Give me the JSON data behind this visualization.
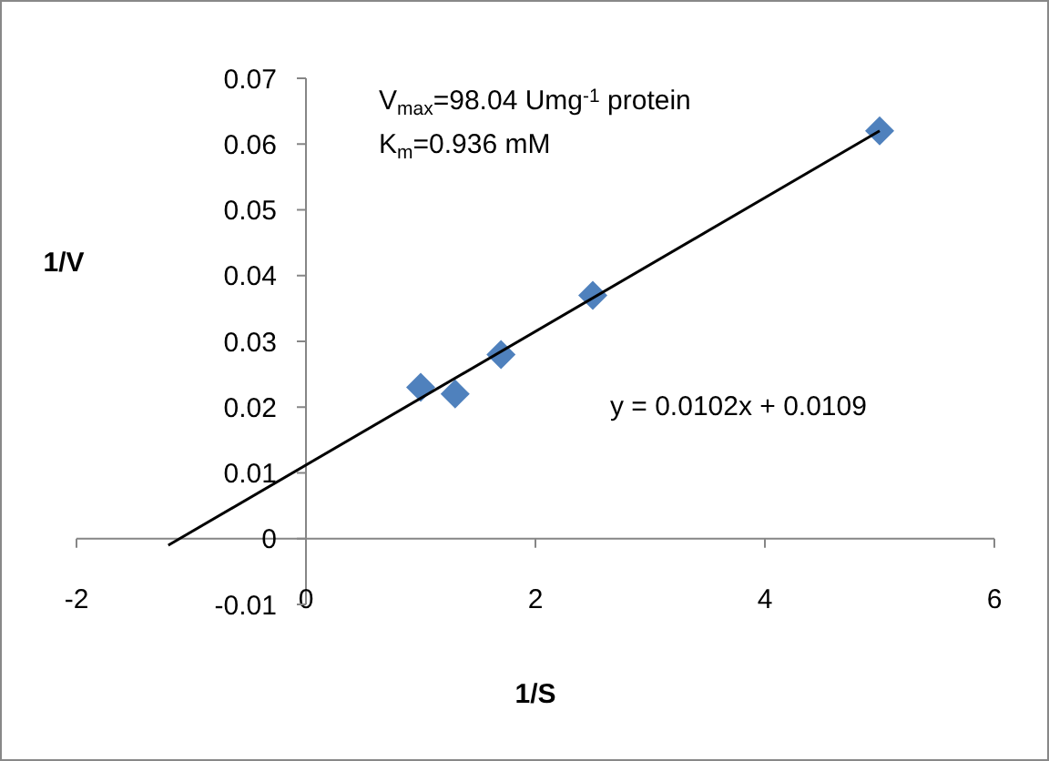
{
  "chart_data": {
    "type": "scatter",
    "xlabel": "1/S",
    "ylabel": "1/V",
    "xlim": [
      -2,
      6
    ],
    "xticks": [
      -2,
      0,
      2,
      4,
      6
    ],
    "ylim": [
      -0.01,
      0.07
    ],
    "yticks": [
      -0.01,
      0,
      0.01,
      0.02,
      0.03,
      0.04,
      0.05,
      0.06,
      0.07
    ],
    "marker": "diamond",
    "series": [
      {
        "color": "#4f81bd",
        "x": [
          1,
          1.3,
          1.7,
          2.5,
          5
        ],
        "values": [
          0.023,
          0.022,
          0.028,
          0.037,
          0.062
        ]
      },
      {
        "type": "line",
        "color": "#000000",
        "marker": "none",
        "line_style": "solid",
        "x": [
          -1.2,
          5
        ],
        "values": [
          -0.001,
          0.062
        ]
      }
    ],
    "annotations": [
      "V$_{max}$=98.04 Umg$^{-1}$ protein",
      "K$_{m}$=0.936 mM",
      "y = 0.0102x + 0.0109"
    ]
  }
}
